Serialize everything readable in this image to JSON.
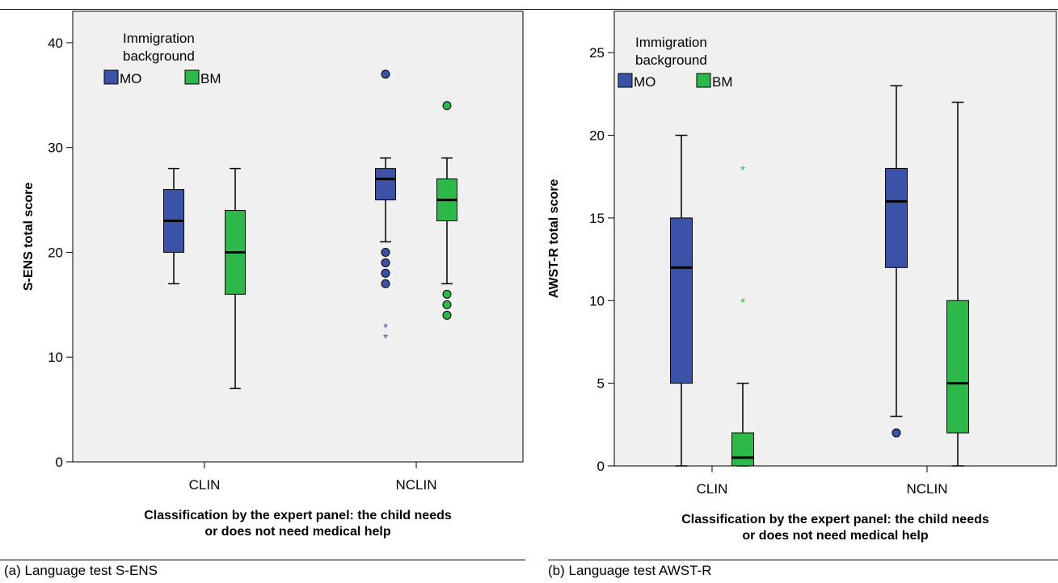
{
  "figure": {
    "captions": [
      "(a) Language test S-ENS",
      "(b) Language test AWST-R"
    ]
  },
  "colors": {
    "MO": "#3a52a8",
    "BM": "#2db84a",
    "panel": "#f0f0f0"
  },
  "chart_data": [
    {
      "type": "box",
      "ylabel": "S-ENS total score",
      "xlabel": "Classification by the expert panel: the child needs\nor does not need medical help",
      "legend_title": "Immigration\nbackground",
      "legend_position": "top-left",
      "categories": [
        "CLIN",
        "NCLIN"
      ],
      "ylim": [
        0,
        43
      ],
      "yticks": [
        0,
        10,
        20,
        30,
        40
      ],
      "series": [
        {
          "name": "MO",
          "boxes": [
            {
              "category": "CLIN",
              "min": 17,
              "q1": 20,
              "median": 23,
              "q3": 26,
              "max": 28,
              "outliers": [],
              "extremes": []
            },
            {
              "category": "NCLIN",
              "min": 21,
              "q1": 25,
              "median": 27,
              "q3": 28,
              "max": 29,
              "outliers": [
                37,
                20,
                19,
                18,
                17
              ],
              "extremes": [
                13,
                12
              ]
            }
          ]
        },
        {
          "name": "BM",
          "boxes": [
            {
              "category": "CLIN",
              "min": 7,
              "q1": 16,
              "median": 20,
              "q3": 24,
              "max": 28,
              "outliers": [],
              "extremes": []
            },
            {
              "category": "NCLIN",
              "min": 17,
              "q1": 23,
              "median": 25,
              "q3": 27,
              "max": 29,
              "outliers": [
                34,
                16,
                15,
                14
              ],
              "extremes": []
            }
          ]
        }
      ]
    },
    {
      "type": "box",
      "ylabel": "AWST-R total score",
      "xlabel": "Classification by the expert panel: the child needs\nor does not need medical help",
      "legend_title": "Immigration\nbackground",
      "legend_position": "top-left",
      "categories": [
        "CLIN",
        "NCLIN"
      ],
      "ylim": [
        0,
        27.5
      ],
      "yticks": [
        0,
        5,
        10,
        15,
        20,
        25
      ],
      "series": [
        {
          "name": "MO",
          "boxes": [
            {
              "category": "CLIN",
              "min": 0,
              "q1": 5,
              "median": 12,
              "q3": 15,
              "max": 20,
              "outliers": [],
              "extremes": []
            },
            {
              "category": "NCLIN",
              "min": 3,
              "q1": 12,
              "median": 16,
              "q3": 18,
              "max": 23,
              "outliers": [
                2
              ],
              "extremes": []
            }
          ]
        },
        {
          "name": "BM",
          "boxes": [
            {
              "category": "CLIN",
              "min": 0,
              "q1": 0,
              "median": 0.5,
              "q3": 2,
              "max": 5,
              "outliers": [],
              "extremes": [
                18,
                10
              ]
            },
            {
              "category": "NCLIN",
              "min": 0,
              "q1": 2,
              "median": 5,
              "q3": 10,
              "max": 22,
              "outliers": [],
              "extremes": []
            }
          ]
        }
      ]
    }
  ]
}
